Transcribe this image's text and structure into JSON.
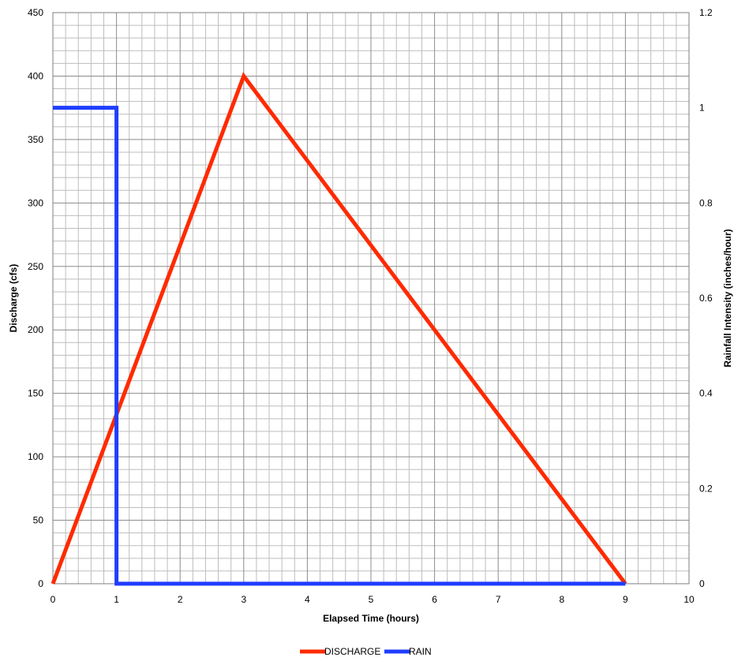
{
  "chart_data": {
    "type": "line",
    "title": "",
    "xlabel": "Elapsed Time (hours)",
    "ylabel": "Discharge (cfs)",
    "y2label": "Rainfall Intensity (inches/hour)",
    "xlim": [
      0,
      10
    ],
    "ylim": [
      0,
      450
    ],
    "y2lim": [
      0,
      1.2
    ],
    "x_ticks": [
      0,
      1,
      2,
      3,
      4,
      5,
      6,
      7,
      8,
      9,
      10
    ],
    "y_ticks": [
      0,
      50,
      100,
      150,
      200,
      250,
      300,
      350,
      400,
      450
    ],
    "y2_ticks": [
      "0",
      "0.2",
      "0.4",
      "0.6",
      "0.8",
      "1",
      "1.2"
    ],
    "grid": true,
    "legend_position": "bottom",
    "series": [
      {
        "name": "DISCHARGE",
        "axis": "left",
        "color": "#ff2a00",
        "x": [
          0,
          3,
          9
        ],
        "y": [
          0,
          400,
          0
        ]
      },
      {
        "name": "RAIN",
        "axis": "right",
        "color": "#1f3dff",
        "x": [
          0,
          1,
          1,
          9
        ],
        "y": [
          1,
          1,
          0,
          0
        ]
      }
    ]
  }
}
